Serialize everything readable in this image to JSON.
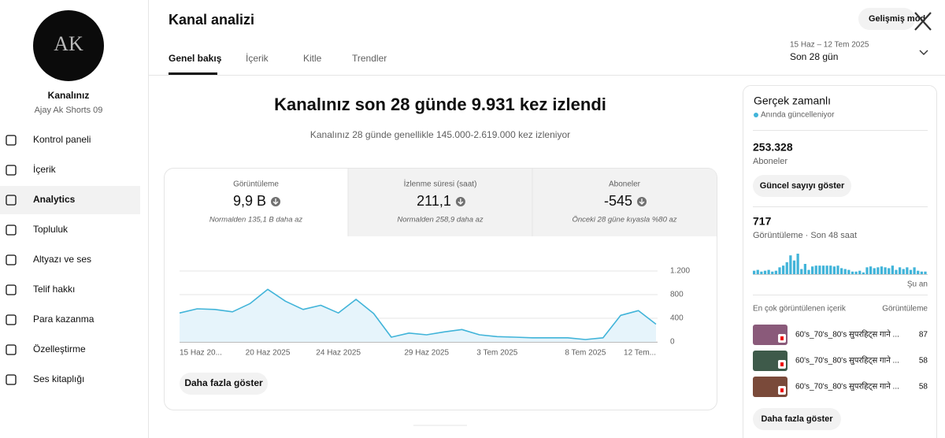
{
  "sidebar": {
    "channel_title": "Kanalınız",
    "channel_name": "Ajay Ak Shorts 09",
    "nav": [
      "Kontrol paneli",
      "İçerik",
      "Analytics",
      "Topluluk",
      "Altyazı ve ses",
      "Telif hakkı",
      "Para kazanma",
      "Özelleştirme",
      "Ses kitaplığı"
    ]
  },
  "header": {
    "title": "Kanal analizi",
    "tabs": [
      "Genel bakış",
      "İçerik",
      "Kitle",
      "Trendler"
    ],
    "advanced_button": "Gelişmiş mod",
    "date_range": "15 Haz – 12 Tem 2025",
    "period": "Son 28 gün"
  },
  "summary": {
    "headline": "Kanalınız son 28 günde 9.931 kez izlendi",
    "subheadline": "Kanalınız 28 günde genellikle 145.000-2.619.000 kez izleniyor",
    "metrics": [
      {
        "label": "Görüntüleme",
        "value": "9,9 B",
        "note": "Normalden 135,1 B daha az"
      },
      {
        "label": "İzlenme süresi (saat)",
        "value": "211,1",
        "note": "Normalden 258,9 daha az"
      },
      {
        "label": "Aboneler",
        "value": "-545",
        "note": "Önceki 28 güne kıyasla %80 az"
      }
    ],
    "more_button": "Daha fazla göster"
  },
  "chart_data": {
    "type": "line",
    "categories": [
      "15 Haz 20...",
      null,
      null,
      null,
      null,
      "20 Haz 2025",
      null,
      null,
      null,
      "24 Haz 2025",
      null,
      null,
      null,
      null,
      "29 Haz 2025",
      null,
      null,
      null,
      "3 Tem 2025",
      null,
      null,
      null,
      null,
      "8 Tem 2025",
      null,
      null,
      null,
      "12 Tem..."
    ],
    "values": [
      490,
      560,
      550,
      510,
      650,
      890,
      690,
      550,
      620,
      490,
      720,
      480,
      80,
      150,
      120,
      170,
      210,
      120,
      90,
      80,
      70,
      70,
      70,
      40,
      70,
      450,
      530,
      300
    ],
    "color": "#41b4d9",
    "ylim": [
      0,
      1200
    ],
    "yticks": [
      0,
      400,
      800,
      {
        "value": 1200,
        "label": "1.200"
      }
    ],
    "grid": true
  },
  "realtime": {
    "title": "Gerçek zamanlı",
    "subtitle": "Anında güncelleniyor",
    "subscribers": "253.328",
    "subscribers_label": "Aboneler",
    "subscribers_button": "Güncel sayıyı göster",
    "views": "717",
    "views_label": "Görüntüleme · Son 48 saat",
    "views_chart": {
      "type": "bar",
      "color": "#41b4d9",
      "values": [
        4,
        5,
        3,
        4,
        5,
        3,
        4,
        8,
        10,
        14,
        22,
        16,
        24,
        6,
        12,
        5,
        9,
        10,
        10,
        10,
        10,
        10,
        9,
        10,
        7,
        6,
        5,
        3,
        3,
        4,
        2,
        8,
        9,
        7,
        8,
        9,
        8,
        7,
        10,
        5,
        8,
        6,
        8,
        5,
        8,
        4,
        3,
        3
      ],
      "end_label": "Şu an"
    },
    "top_content": {
      "header": "En çok görüntülenen içerik",
      "views_header": "Görüntüleme",
      "items": [
        {
          "title": "60's_70's_80's सुपरहिट्स गाने ...",
          "views": 87
        },
        {
          "title": "60's_70's_80's सुपरहिट्स गाने ...",
          "views": 58
        },
        {
          "title": "60's_70's_80's सुपरहिट्स गाने ...",
          "views": 58
        }
      ]
    },
    "more_button": "Daha fazla göster"
  }
}
